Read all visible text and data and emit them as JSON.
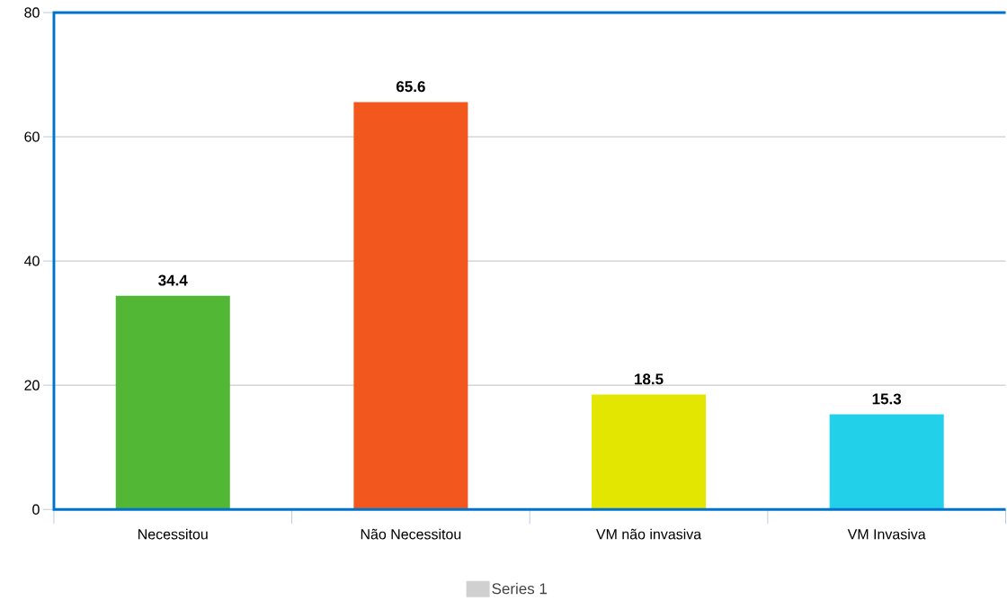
{
  "chart_data": {
    "type": "bar",
    "categories": [
      "Necessitou",
      "Não Necessitou",
      "VM não invasiva",
      "VM Invasiva"
    ],
    "series": [
      {
        "name": "Series 1",
        "color": "#d0d0d0",
        "colors": [
          "#52b734",
          "#f2581e",
          "#e3e600",
          "#23d0ea"
        ],
        "values": [
          34.4,
          65.6,
          18.5,
          15.3
        ]
      }
    ],
    "ylim": [
      0,
      80
    ],
    "yticks": [
      0,
      20,
      40,
      60,
      80
    ],
    "grid": "y",
    "legend": "bottom",
    "data_labels": true
  }
}
